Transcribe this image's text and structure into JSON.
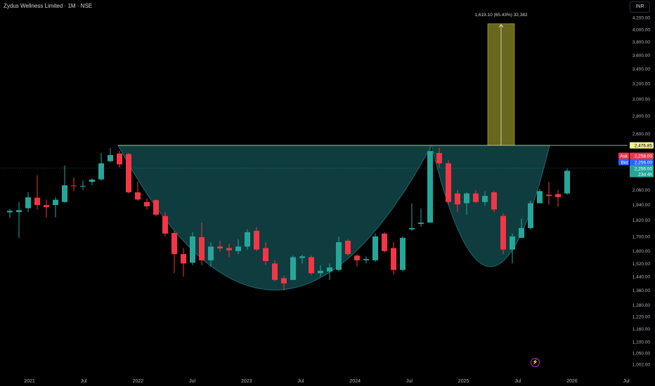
{
  "header": {
    "title": "Zydus Wellness Limited · 1M · NSE",
    "currency": "INR"
  },
  "colors": {
    "up": "#26a69a",
    "down": "#f23645",
    "pattern_fill": "#0f3c3f",
    "pattern_stroke": "#1b6a6a",
    "resistance": "#c8e678",
    "projection_fill": "#8a8a28",
    "ask": "#f23645",
    "bid": "#2962ff",
    "last": "#26a69a"
  },
  "chart_data": {
    "type": "candlestick",
    "y_scale": "log",
    "ylim": [
      960,
      4400
    ],
    "x_labels": [
      "2021",
      "Jul",
      "2022",
      "Jul",
      "2023",
      "Jul",
      "2024",
      "Jul",
      "2025",
      "Jul",
      "2026",
      "Jul"
    ],
    "y_ticks": [
      4200,
      4000,
      3800,
      3600,
      3400,
      3200,
      3000,
      2800,
      2600,
      2060,
      1940,
      1820,
      1700,
      1600,
      1520,
      1440,
      1360,
      1280,
      1220,
      1160,
      1100,
      1050,
      1002
    ],
    "candles": [
      {
        "date": "2020-11",
        "o": 1878,
        "h": 1905,
        "l": 1835,
        "c": 1890
      },
      {
        "date": "2020-12",
        "o": 1880,
        "h": 1960,
        "l": 1690,
        "c": 1895
      },
      {
        "date": "2021-01",
        "o": 1910,
        "h": 2040,
        "l": 1880,
        "c": 1998
      },
      {
        "date": "2021-02",
        "o": 1995,
        "h": 2190,
        "l": 1900,
        "c": 1935
      },
      {
        "date": "2021-03",
        "o": 1935,
        "h": 1980,
        "l": 1840,
        "c": 1918
      },
      {
        "date": "2021-04",
        "o": 1935,
        "h": 2000,
        "l": 1840,
        "c": 1978
      },
      {
        "date": "2021-05",
        "o": 1960,
        "h": 2280,
        "l": 1955,
        "c": 2100
      },
      {
        "date": "2021-06",
        "o": 2098,
        "h": 2170,
        "l": 2050,
        "c": 2092
      },
      {
        "date": "2021-07",
        "o": 2090,
        "h": 2140,
        "l": 2060,
        "c": 2095
      },
      {
        "date": "2021-08",
        "o": 2130,
        "h": 2160,
        "l": 2100,
        "c": 2150
      },
      {
        "date": "2021-09",
        "o": 2152,
        "h": 2400,
        "l": 2140,
        "c": 2300
      },
      {
        "date": "2021-10",
        "o": 2320,
        "h": 2450,
        "l": 2310,
        "c": 2380
      },
      {
        "date": "2021-11",
        "o": 2395,
        "h": 2420,
        "l": 2260,
        "c": 2290
      },
      {
        "date": "2021-12",
        "o": 2390,
        "h": 2400,
        "l": 2030,
        "c": 2040
      },
      {
        "date": "2022-01",
        "o": 2040,
        "h": 2130,
        "l": 1970,
        "c": 1980
      },
      {
        "date": "2022-02",
        "o": 1960,
        "h": 1990,
        "l": 1900,
        "c": 1925
      },
      {
        "date": "2022-03",
        "o": 1975,
        "h": 1980,
        "l": 1850,
        "c": 1860
      },
      {
        "date": "2022-04",
        "o": 1850,
        "h": 1880,
        "l": 1700,
        "c": 1720
      },
      {
        "date": "2022-05",
        "o": 1725,
        "h": 1740,
        "l": 1460,
        "c": 1580
      },
      {
        "date": "2022-06",
        "o": 1580,
        "h": 1620,
        "l": 1440,
        "c": 1520
      },
      {
        "date": "2022-07",
        "o": 1525,
        "h": 1730,
        "l": 1510,
        "c": 1700
      },
      {
        "date": "2022-08",
        "o": 1695,
        "h": 1800,
        "l": 1510,
        "c": 1540
      },
      {
        "date": "2022-09",
        "o": 1540,
        "h": 1660,
        "l": 1500,
        "c": 1630
      },
      {
        "date": "2022-10",
        "o": 1630,
        "h": 1670,
        "l": 1595,
        "c": 1618
      },
      {
        "date": "2022-11",
        "o": 1620,
        "h": 1650,
        "l": 1560,
        "c": 1605
      },
      {
        "date": "2022-12",
        "o": 1600,
        "h": 1680,
        "l": 1580,
        "c": 1630
      },
      {
        "date": "2023-01",
        "o": 1630,
        "h": 1750,
        "l": 1610,
        "c": 1730
      },
      {
        "date": "2023-02",
        "o": 1740,
        "h": 1765,
        "l": 1600,
        "c": 1610
      },
      {
        "date": "2023-03",
        "o": 1620,
        "h": 1660,
        "l": 1510,
        "c": 1535
      },
      {
        "date": "2023-04",
        "o": 1520,
        "h": 1540,
        "l": 1410,
        "c": 1420
      },
      {
        "date": "2023-05",
        "o": 1430,
        "h": 1445,
        "l": 1360,
        "c": 1400
      },
      {
        "date": "2023-06",
        "o": 1420,
        "h": 1570,
        "l": 1420,
        "c": 1560
      },
      {
        "date": "2023-07",
        "o": 1555,
        "h": 1575,
        "l": 1520,
        "c": 1565
      },
      {
        "date": "2023-08",
        "o": 1560,
        "h": 1570,
        "l": 1450,
        "c": 1460
      },
      {
        "date": "2023-09",
        "o": 1460,
        "h": 1510,
        "l": 1440,
        "c": 1475
      },
      {
        "date": "2023-10",
        "o": 1470,
        "h": 1520,
        "l": 1420,
        "c": 1495
      },
      {
        "date": "2023-11",
        "o": 1480,
        "h": 1700,
        "l": 1470,
        "c": 1660
      },
      {
        "date": "2023-12",
        "o": 1670,
        "h": 1680,
        "l": 1570,
        "c": 1580
      },
      {
        "date": "2024-01",
        "o": 1570,
        "h": 1580,
        "l": 1500,
        "c": 1540
      },
      {
        "date": "2024-02",
        "o": 1540,
        "h": 1565,
        "l": 1520,
        "c": 1548
      },
      {
        "date": "2024-03",
        "o": 1540,
        "h": 1720,
        "l": 1530,
        "c": 1700
      },
      {
        "date": "2024-04",
        "o": 1720,
        "h": 1730,
        "l": 1590,
        "c": 1600
      },
      {
        "date": "2024-05",
        "o": 1620,
        "h": 1660,
        "l": 1450,
        "c": 1480
      },
      {
        "date": "2024-06",
        "o": 1480,
        "h": 1700,
        "l": 1470,
        "c": 1690
      },
      {
        "date": "2024-07",
        "o": 1750,
        "h": 1950,
        "l": 1740,
        "c": 1760
      },
      {
        "date": "2024-08",
        "o": 1790,
        "h": 1910,
        "l": 1770,
        "c": 1800
      },
      {
        "date": "2024-09",
        "o": 1800,
        "h": 2460,
        "l": 1800,
        "c": 2420
      },
      {
        "date": "2024-10",
        "o": 2400,
        "h": 2450,
        "l": 2260,
        "c": 2300
      },
      {
        "date": "2024-11",
        "o": 2300,
        "h": 2330,
        "l": 1940,
        "c": 1960
      },
      {
        "date": "2024-12",
        "o": 2030,
        "h": 2060,
        "l": 1880,
        "c": 1940
      },
      {
        "date": "2025-01",
        "o": 1950,
        "h": 2040,
        "l": 1860,
        "c": 2030
      },
      {
        "date": "2025-02",
        "o": 2030,
        "h": 2060,
        "l": 1950,
        "c": 1960
      },
      {
        "date": "2025-03",
        "o": 1960,
        "h": 2050,
        "l": 1930,
        "c": 2010
      },
      {
        "date": "2025-04",
        "o": 2040,
        "h": 2050,
        "l": 1880,
        "c": 1900
      },
      {
        "date": "2025-05",
        "o": 1850,
        "h": 1870,
        "l": 1580,
        "c": 1610
      },
      {
        "date": "2025-06",
        "o": 1610,
        "h": 1720,
        "l": 1520,
        "c": 1700
      },
      {
        "date": "2025-07",
        "o": 1690,
        "h": 1830,
        "l": 1690,
        "c": 1760
      },
      {
        "date": "2025-08",
        "o": 1760,
        "h": 1970,
        "l": 1750,
        "c": 1950
      },
      {
        "date": "2025-09",
        "o": 1950,
        "h": 2070,
        "l": 1950,
        "c": 2050
      },
      {
        "date": "2025-10",
        "o": 2020,
        "h": 2130,
        "l": 1940,
        "c": 2010
      },
      {
        "date": "2025-11",
        "o": 2025,
        "h": 2060,
        "l": 1920,
        "c": 2000
      },
      {
        "date": "2025-12",
        "o": 2030,
        "h": 2250,
        "l": 2020,
        "c": 2230
      }
    ],
    "resistance_level": 2476.85,
    "measured_move": {
      "label": "1,619.10 (65.43%) 32,382",
      "from": 2476.85,
      "to": 4095.95
    },
    "price_labels": {
      "resistance": "2,476.85",
      "ask_tag": "Ask",
      "ask": "2,258.00",
      "bid_tag": "Bid",
      "bid": "2,256.00",
      "last": "2,256.00",
      "countdown": "23d 4h"
    }
  }
}
